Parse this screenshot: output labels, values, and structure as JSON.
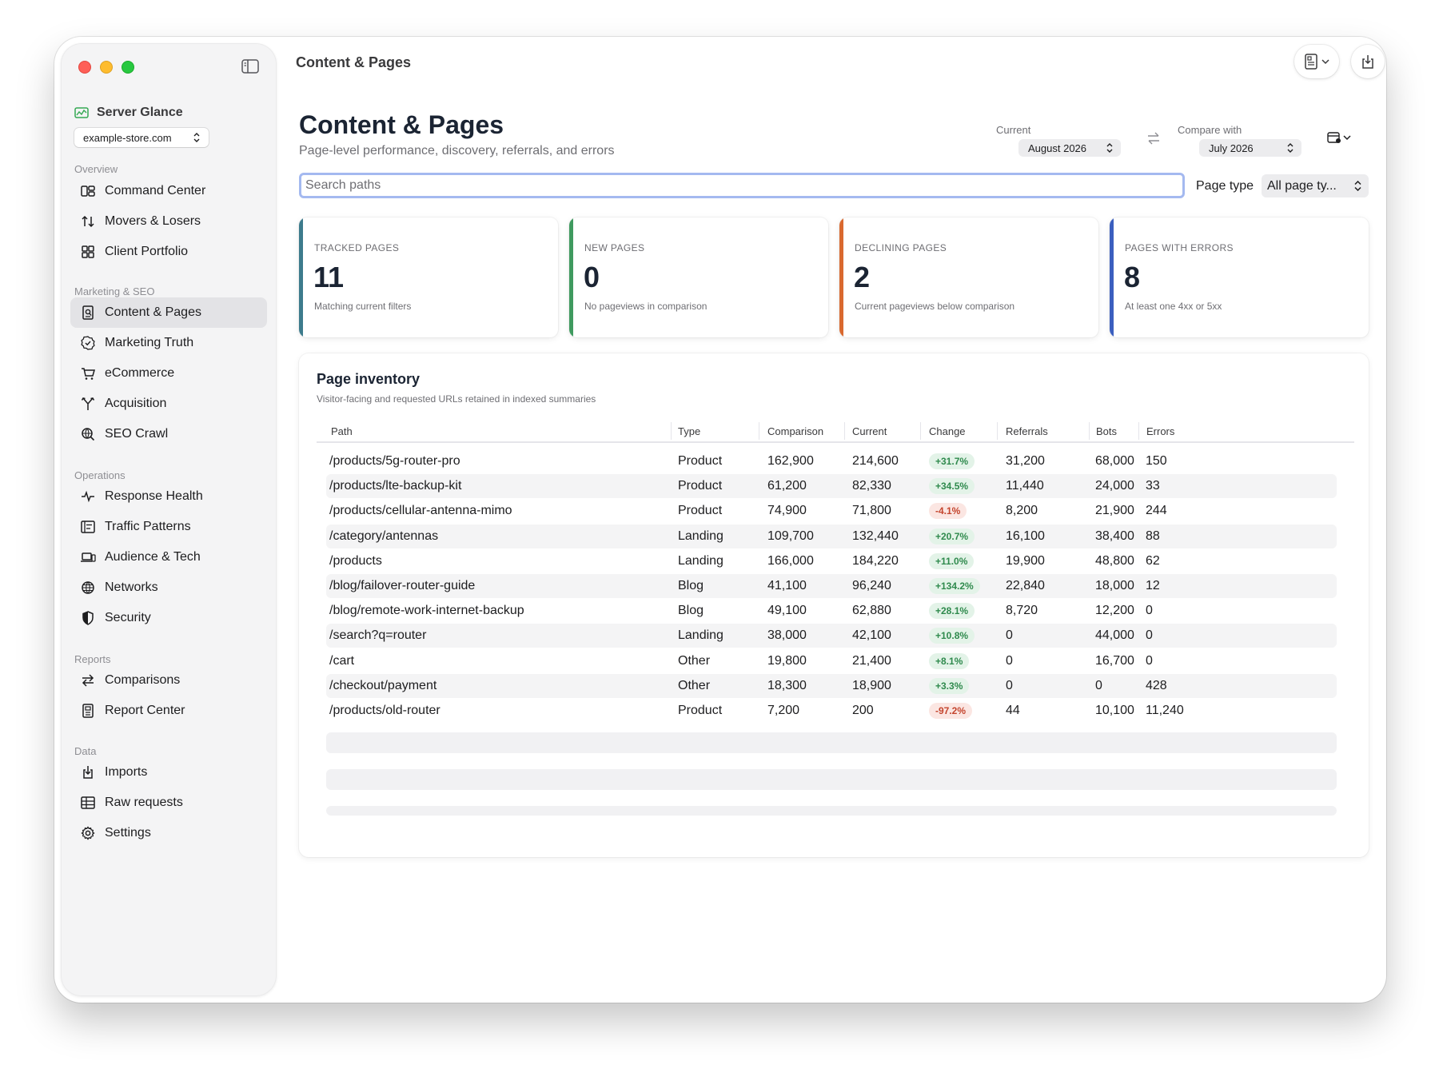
{
  "sidebar": {
    "brand": "Server Glance",
    "site": "example-store.com",
    "sections": {
      "overview": "Overview",
      "marketing": "Marketing & SEO",
      "operations": "Operations",
      "reports": "Reports",
      "data": "Data"
    },
    "items": {
      "command_center": "Command Center",
      "movers_losers": "Movers & Losers",
      "client_portfolio": "Client Portfolio",
      "content_pages": "Content & Pages",
      "marketing_truth": "Marketing Truth",
      "ecommerce": "eCommerce",
      "acquisition": "Acquisition",
      "seo_crawl": "SEO Crawl",
      "response_health": "Response Health",
      "traffic_patterns": "Traffic Patterns",
      "audience_tech": "Audience & Tech",
      "networks": "Networks",
      "security": "Security",
      "comparisons": "Comparisons",
      "report_center": "Report Center",
      "imports": "Imports",
      "raw_requests": "Raw requests",
      "settings": "Settings"
    },
    "active": "content_pages"
  },
  "topbar": {
    "title": "Content & Pages"
  },
  "header": {
    "title": "Content & Pages",
    "subtitle": "Page-level performance, discovery, referrals, and errors",
    "current_label": "Current",
    "current_value": "August 2026",
    "compare_label": "Compare with",
    "compare_value": "July 2026"
  },
  "filters": {
    "search_placeholder": "Search paths",
    "page_type_label": "Page type",
    "page_type_value": "All page ty..."
  },
  "cards": [
    {
      "label": "TRACKED PAGES",
      "value": "11",
      "note": "Matching current filters",
      "color": "#3d7b8c"
    },
    {
      "label": "NEW PAGES",
      "value": "0",
      "note": "No pageviews in comparison",
      "color": "#3f9a5f"
    },
    {
      "label": "DECLINING PAGES",
      "value": "2",
      "note": "Current pageviews below comparison",
      "color": "#d9692f"
    },
    {
      "label": "PAGES WITH ERRORS",
      "value": "8",
      "note": "At least one 4xx or 5xx",
      "color": "#3b5fbf"
    }
  ],
  "inventory": {
    "title": "Page inventory",
    "subtitle": "Visitor-facing and requested URLs retained in indexed summaries",
    "columns": [
      "Path",
      "Type",
      "Comparison",
      "Current",
      "Change",
      "Referrals",
      "Bots",
      "Errors"
    ],
    "rows": [
      {
        "path": "/products/5g-router-pro",
        "type": "Product",
        "comparison": "162,900",
        "current": "214,600",
        "change": "+31.7%",
        "trend": "pos",
        "referrals": "31,200",
        "bots": "68,000",
        "errors": "150"
      },
      {
        "path": "/products/lte-backup-kit",
        "type": "Product",
        "comparison": "61,200",
        "current": "82,330",
        "change": "+34.5%",
        "trend": "pos",
        "referrals": "11,440",
        "bots": "24,000",
        "errors": "33"
      },
      {
        "path": "/products/cellular-antenna-mimo",
        "type": "Product",
        "comparison": "74,900",
        "current": "71,800",
        "change": "-4.1%",
        "trend": "neg",
        "referrals": "8,200",
        "bots": "21,900",
        "errors": "244"
      },
      {
        "path": "/category/antennas",
        "type": "Landing",
        "comparison": "109,700",
        "current": "132,440",
        "change": "+20.7%",
        "trend": "pos",
        "referrals": "16,100",
        "bots": "38,400",
        "errors": "88"
      },
      {
        "path": "/products",
        "type": "Landing",
        "comparison": "166,000",
        "current": "184,220",
        "change": "+11.0%",
        "trend": "pos",
        "referrals": "19,900",
        "bots": "48,800",
        "errors": "62"
      },
      {
        "path": "/blog/failover-router-guide",
        "type": "Blog",
        "comparison": "41,100",
        "current": "96,240",
        "change": "+134.2%",
        "trend": "pos",
        "referrals": "22,840",
        "bots": "18,000",
        "errors": "12"
      },
      {
        "path": "/blog/remote-work-internet-backup",
        "type": "Blog",
        "comparison": "49,100",
        "current": "62,880",
        "change": "+28.1%",
        "trend": "pos",
        "referrals": "8,720",
        "bots": "12,200",
        "errors": "0"
      },
      {
        "path": "/search?q=router",
        "type": "Landing",
        "comparison": "38,000",
        "current": "42,100",
        "change": "+10.8%",
        "trend": "pos",
        "referrals": "0",
        "bots": "44,000",
        "errors": "0"
      },
      {
        "path": "/cart",
        "type": "Other",
        "comparison": "19,800",
        "current": "21,400",
        "change": "+8.1%",
        "trend": "pos",
        "referrals": "0",
        "bots": "16,700",
        "errors": "0"
      },
      {
        "path": "/checkout/payment",
        "type": "Other",
        "comparison": "18,300",
        "current": "18,900",
        "change": "+3.3%",
        "trend": "pos",
        "referrals": "0",
        "bots": "0",
        "errors": "428"
      },
      {
        "path": "/products/old-router",
        "type": "Product",
        "comparison": "7,200",
        "current": "200",
        "change": "-97.2%",
        "trend": "neg",
        "referrals": "44",
        "bots": "10,100",
        "errors": "11,240"
      }
    ]
  }
}
